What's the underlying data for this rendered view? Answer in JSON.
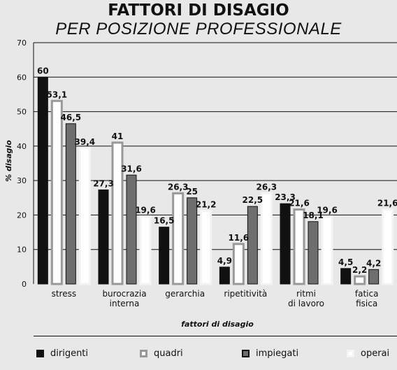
{
  "title": "FATTORI DI DISAGIO",
  "subtitle": "PER POSIZIONE PROFESSIONALE",
  "colors": {
    "dirigenti": "#111111",
    "quadri": "#ffffff",
    "impiegati": "#6e6e6e",
    "operai": "#ffffff",
    "background": "#e8e8e8"
  },
  "chart_data": {
    "type": "bar",
    "title": "FATTORI DI DISAGIO",
    "subtitle": "PER POSIZIONE PROFESSIONALE",
    "xlabel": "fattori di disagio",
    "ylabel": "% disagio",
    "ylim": [
      0,
      70
    ],
    "yticks": [
      0,
      10,
      20,
      30,
      40,
      50,
      60,
      70
    ],
    "grid": true,
    "legend_position": "bottom",
    "categories": [
      [
        "stress"
      ],
      [
        "burocrazia",
        "interna"
      ],
      [
        "gerarchia"
      ],
      [
        "ripetitività"
      ],
      [
        "ritmi",
        "di lavoro"
      ],
      [
        "fatica",
        "fisica"
      ]
    ],
    "series": [
      {
        "name": "dirigenti",
        "values": [
          60,
          27.3,
          16.5,
          4.9,
          23.3,
          4.5
        ],
        "labels": [
          "60",
          "27,3",
          "16,5",
          "4,9",
          "23,3",
          "4,5"
        ]
      },
      {
        "name": "quadri",
        "values": [
          53.1,
          41,
          26.3,
          11.6,
          21.6,
          2.2
        ],
        "labels": [
          "53,1",
          "41",
          "26,3",
          "11,6",
          "21,6",
          "2,2"
        ]
      },
      {
        "name": "impiegati",
        "values": [
          46.5,
          31.6,
          25,
          22.5,
          18.1,
          4.2
        ],
        "labels": [
          "46,5",
          "31,6",
          "25",
          "22,5",
          "18,1",
          "4,2"
        ]
      },
      {
        "name": "operai",
        "values": [
          39.4,
          19.6,
          21.2,
          26.3,
          19.6,
          21.6
        ],
        "labels": [
          "39,4",
          "19,6",
          "21,2",
          "26,3",
          "19,6",
          "21,6"
        ]
      }
    ]
  }
}
